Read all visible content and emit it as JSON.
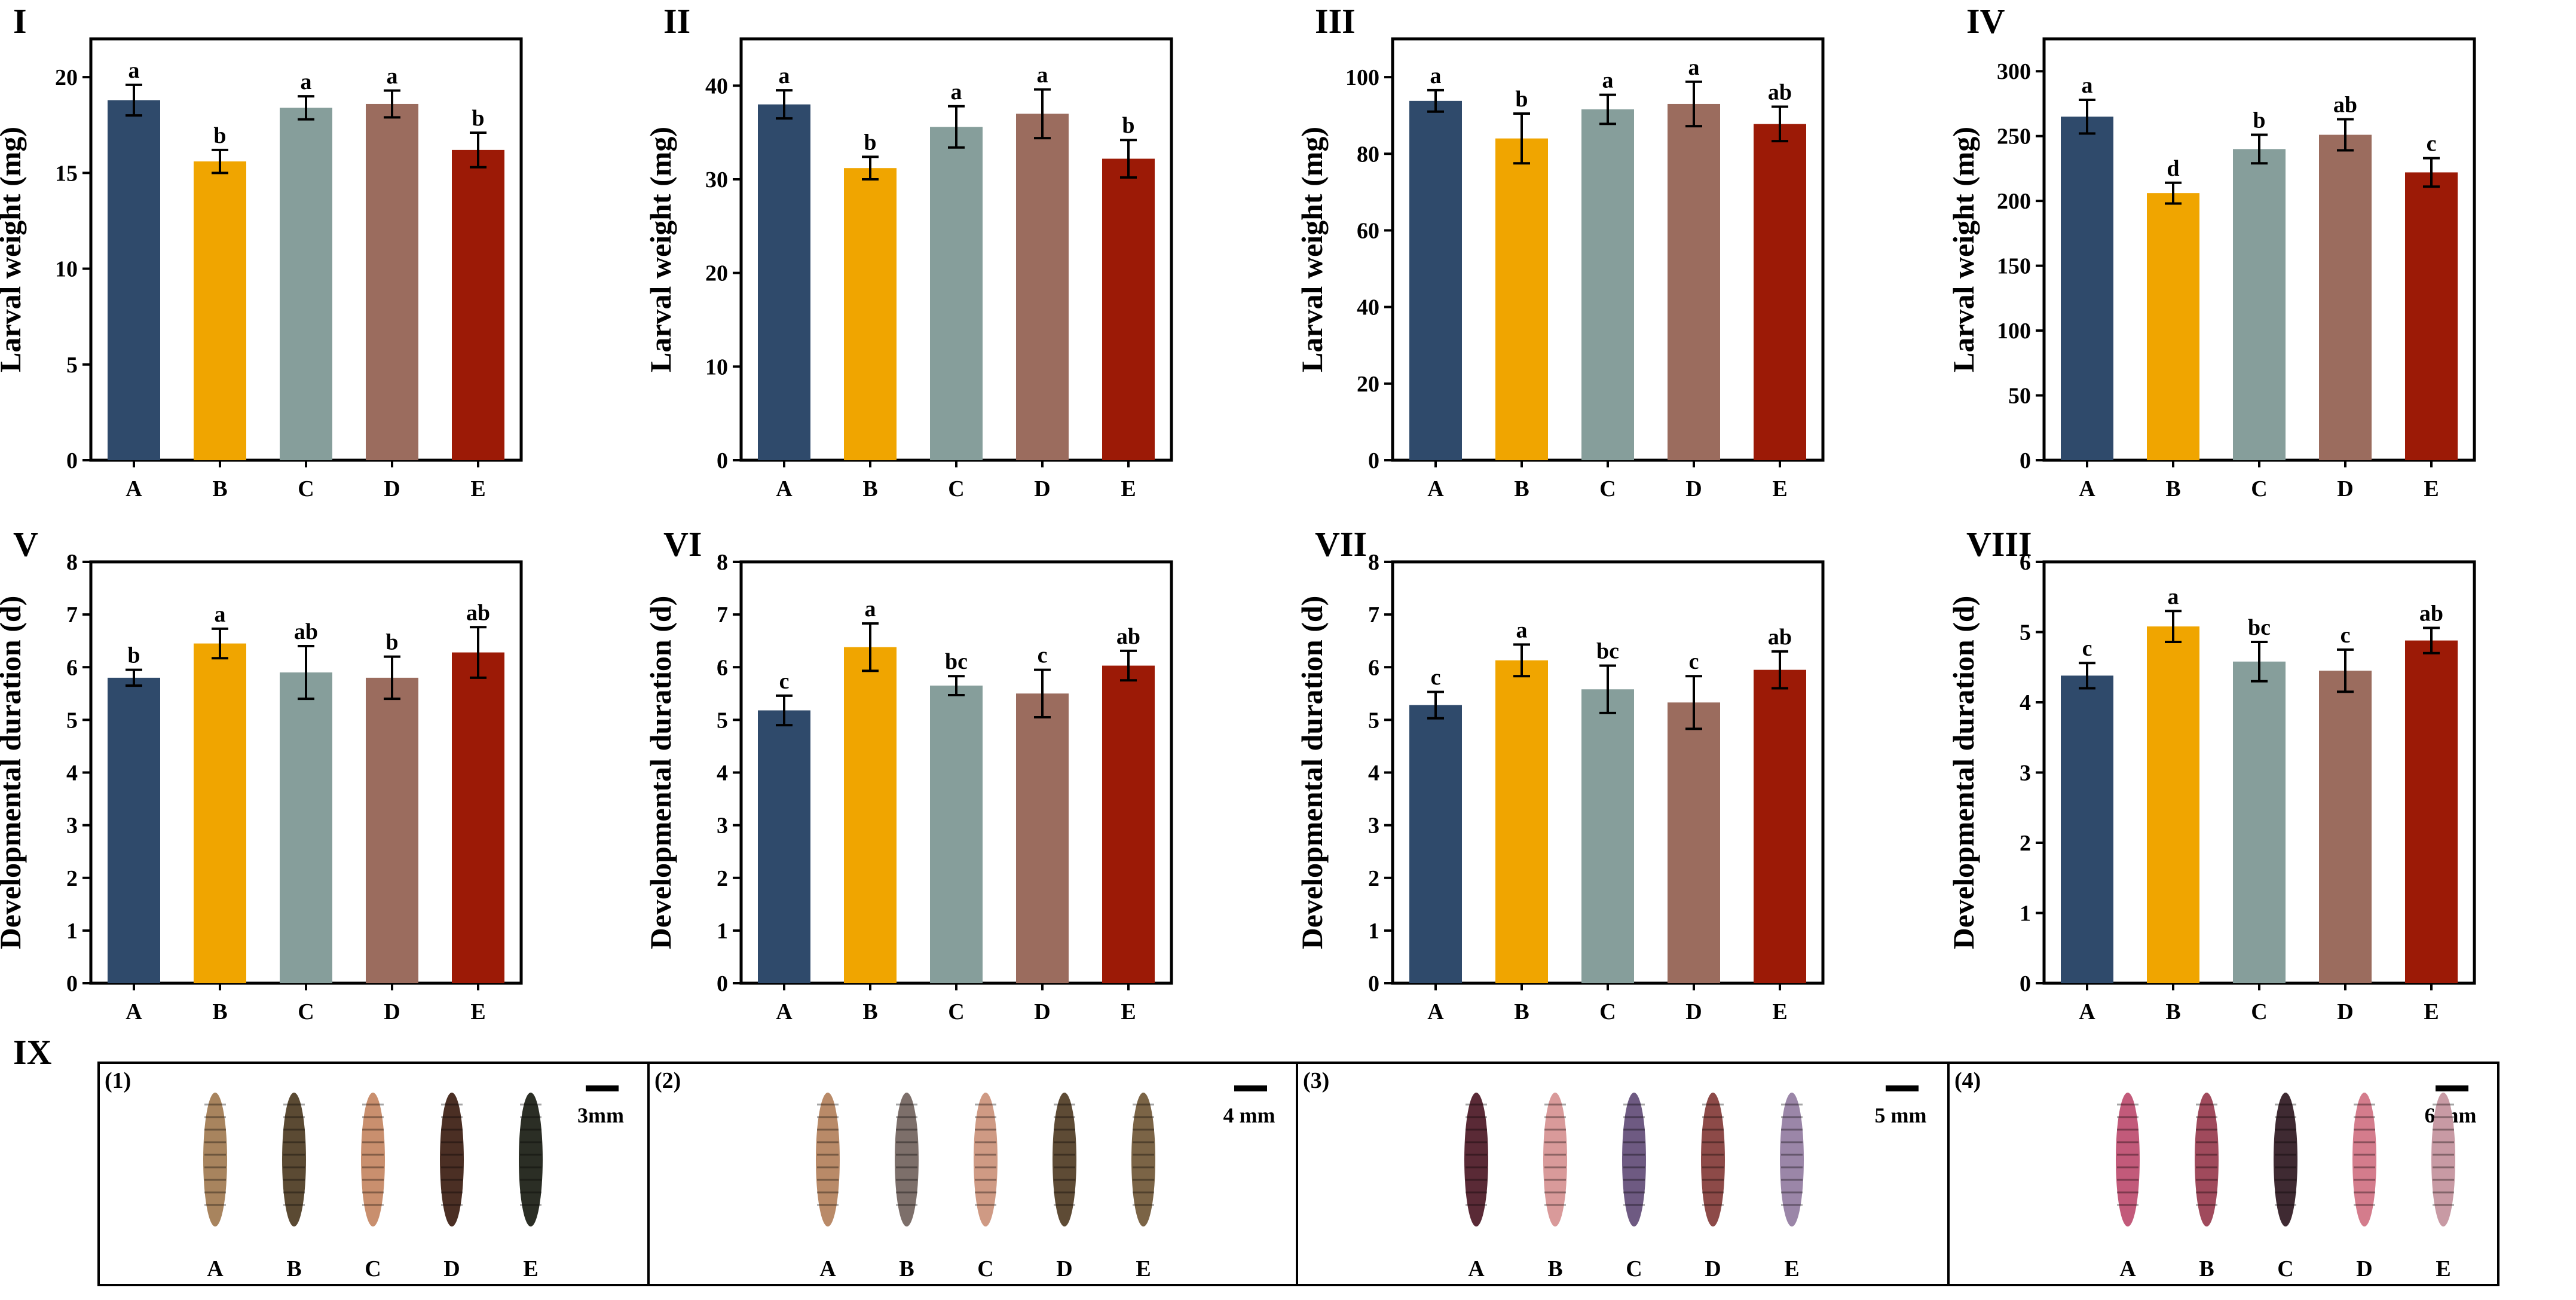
{
  "colors": [
    "#2f4a6b",
    "#f0a500",
    "#869e9b",
    "#9b6c5e",
    "#9c1a06"
  ],
  "chart_data": [
    {
      "type": "bar",
      "panel": "I",
      "ylabel": "Larval weight (mg)",
      "ylim": [
        0,
        22
      ],
      "yticks": [
        0,
        5,
        10,
        15,
        20
      ],
      "categories": [
        "A",
        "B",
        "C",
        "D",
        "E"
      ],
      "values": [
        18.8,
        15.6,
        18.4,
        18.6,
        16.2
      ],
      "errors": [
        0.8,
        0.6,
        0.6,
        0.7,
        0.9
      ],
      "letters": [
        "a",
        "b",
        "a",
        "a",
        "b"
      ]
    },
    {
      "type": "bar",
      "panel": "II",
      "ylabel": "Larval weight (mg)",
      "ylim": [
        0,
        45
      ],
      "yticks": [
        0,
        10,
        20,
        30,
        40
      ],
      "categories": [
        "A",
        "B",
        "C",
        "D",
        "E"
      ],
      "values": [
        38.0,
        31.2,
        35.6,
        37.0,
        32.2
      ],
      "errors": [
        1.5,
        1.2,
        2.2,
        2.6,
        2.0
      ],
      "letters": [
        "a",
        "b",
        "a",
        "a",
        "b"
      ]
    },
    {
      "type": "bar",
      "panel": "III",
      "ylabel": "Larval weight (mg)",
      "ylim": [
        0,
        110
      ],
      "yticks": [
        0,
        20,
        40,
        60,
        80,
        100
      ],
      "categories": [
        "A",
        "B",
        "C",
        "D",
        "E"
      ],
      "values": [
        93.8,
        84.0,
        91.6,
        93.0,
        87.8
      ],
      "errors": [
        2.8,
        6.5,
        3.8,
        5.8,
        4.5
      ],
      "letters": [
        "a",
        "b",
        "a",
        "a",
        "ab"
      ]
    },
    {
      "type": "bar",
      "panel": "IV",
      "ylabel": "Larval weight (mg)",
      "ylim": [
        0,
        325
      ],
      "yticks": [
        0,
        50,
        100,
        150,
        200,
        250,
        300
      ],
      "categories": [
        "A",
        "B",
        "C",
        "D",
        "E"
      ],
      "values": [
        265,
        206,
        240,
        251,
        222
      ],
      "errors": [
        13,
        8,
        11,
        12,
        11
      ],
      "letters": [
        "a",
        "d",
        "b",
        "ab",
        "c"
      ]
    },
    {
      "type": "bar",
      "panel": "V",
      "ylabel": "Developmental duration (d)",
      "ylim": [
        0,
        8
      ],
      "yticks": [
        0,
        1,
        2,
        3,
        4,
        5,
        6,
        7,
        8
      ],
      "categories": [
        "A",
        "B",
        "C",
        "D",
        "E"
      ],
      "values": [
        5.8,
        6.45,
        5.9,
        5.8,
        6.28
      ],
      "errors": [
        0.15,
        0.28,
        0.5,
        0.4,
        0.48
      ],
      "letters": [
        "b",
        "a",
        "ab",
        "b",
        "ab"
      ]
    },
    {
      "type": "bar",
      "panel": "VI",
      "ylabel": "Developmental duration (d)",
      "ylim": [
        0,
        8
      ],
      "yticks": [
        0,
        1,
        2,
        3,
        4,
        5,
        6,
        7,
        8
      ],
      "categories": [
        "A",
        "B",
        "C",
        "D",
        "E"
      ],
      "values": [
        5.18,
        6.38,
        5.65,
        5.5,
        6.03
      ],
      "errors": [
        0.28,
        0.45,
        0.18,
        0.45,
        0.28
      ],
      "letters": [
        "c",
        "a",
        "bc",
        "c",
        "ab"
      ]
    },
    {
      "type": "bar",
      "panel": "VII",
      "ylabel": "Developmental duration (d)",
      "ylim": [
        0,
        8
      ],
      "yticks": [
        0,
        1,
        2,
        3,
        4,
        5,
        6,
        7,
        8
      ],
      "categories": [
        "A",
        "B",
        "C",
        "D",
        "E"
      ],
      "values": [
        5.28,
        6.13,
        5.58,
        5.33,
        5.95
      ],
      "errors": [
        0.25,
        0.3,
        0.45,
        0.5,
        0.35
      ],
      "letters": [
        "c",
        "a",
        "bc",
        "c",
        "ab"
      ]
    },
    {
      "type": "bar",
      "panel": "VIII",
      "ylabel": "Developmental duration (d)",
      "ylim": [
        0,
        6
      ],
      "yticks": [
        0,
        1,
        2,
        3,
        4,
        5,
        6
      ],
      "categories": [
        "A",
        "B",
        "C",
        "D",
        "E"
      ],
      "values": [
        4.38,
        5.08,
        4.58,
        4.45,
        4.88
      ],
      "errors": [
        0.18,
        0.22,
        0.28,
        0.3,
        0.18
      ],
      "letters": [
        "c",
        "a",
        "bc",
        "c",
        "ab"
      ]
    }
  ],
  "photo_panel": {
    "label": "IX",
    "subpanels": [
      {
        "label": "(1)",
        "scale": "3mm",
        "larvae": [
          "A",
          "B",
          "C",
          "D",
          "E"
        ],
        "colors": [
          "#a8845e",
          "#5b4a33",
          "#c98f6e",
          "#4b2f24",
          "#2b2e25"
        ]
      },
      {
        "label": "(2)",
        "scale": "4 mm",
        "larvae": [
          "A",
          "B",
          "C",
          "D",
          "E"
        ],
        "colors": [
          "#b98a68",
          "#7d6f6a",
          "#cf9a84",
          "#5e4b35",
          "#7b6446"
        ]
      },
      {
        "label": "(3)",
        "scale": "5 mm",
        "larvae": [
          "A",
          "B",
          "C",
          "D",
          "E"
        ],
        "colors": [
          "#5a2a36",
          "#d99a9a",
          "#6e5a82",
          "#8d4a48",
          "#9b86a8"
        ]
      },
      {
        "label": "(4)",
        "scale": "6 mm",
        "larvae": [
          "A",
          "B",
          "C",
          "D",
          "E"
        ],
        "colors": [
          "#c25a7a",
          "#a04a5c",
          "#3f2a32",
          "#d47c8c",
          "#c89aa4"
        ]
      }
    ]
  }
}
